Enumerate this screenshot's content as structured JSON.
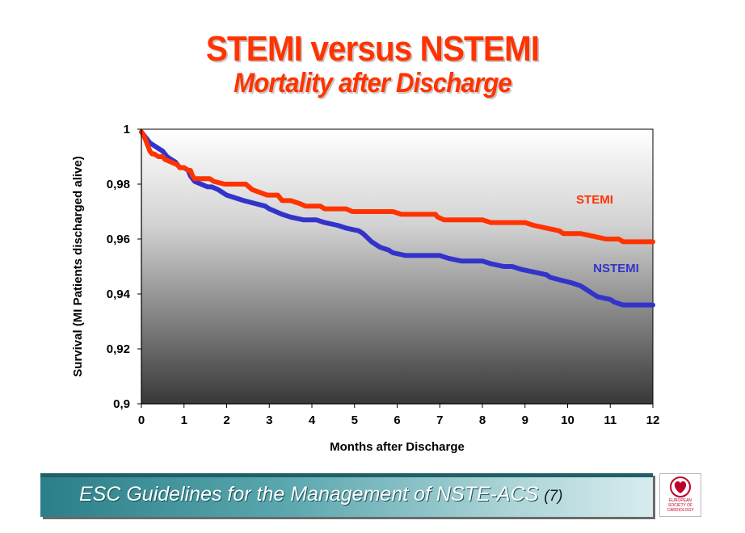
{
  "header": {
    "title": "STEMI versus NSTEMI",
    "subtitle": "Mortality after Discharge"
  },
  "chart_data": {
    "type": "line",
    "title": "STEMI versus NSTEMI",
    "subtitle": "Mortality after Discharge",
    "xlabel": "Months after Discharge",
    "ylabel": "Survival (MI Patients discharged alive)",
    "xlim": [
      0,
      12
    ],
    "ylim": [
      0.9,
      1.0
    ],
    "xticks": [
      "0",
      "1",
      "2",
      "3",
      "4",
      "5",
      "6",
      "7",
      "8",
      "9",
      "10",
      "11",
      "12"
    ],
    "yticks": [
      {
        "value": 0.9,
        "label": "0,9"
      },
      {
        "value": 0.92,
        "label": "0,92"
      },
      {
        "value": 0.94,
        "label": "0,94"
      },
      {
        "value": 0.96,
        "label": "0,96"
      },
      {
        "value": 0.98,
        "label": "0,98"
      },
      {
        "value": 1.0,
        "label": "1"
      }
    ],
    "series": [
      {
        "name": "STEMI",
        "color": "#ff3300",
        "label_at": [
          10.2,
          0.973
        ],
        "x": [
          0,
          0.05,
          0.1,
          0.15,
          0.2,
          0.25,
          0.3,
          0.4,
          0.5,
          0.55,
          0.7,
          0.85,
          0.9,
          1.0,
          1.1,
          1.15,
          1.2,
          1.25,
          1.6,
          1.7,
          1.95,
          2.1,
          2.45,
          2.6,
          2.95,
          3.2,
          3.3,
          3.5,
          3.7,
          3.85,
          4.2,
          4.3,
          4.8,
          4.95,
          5.4,
          5.9,
          6.1,
          6.9,
          6.95,
          7.1,
          7.5,
          8.0,
          8.2,
          8.3,
          8.6,
          9.0,
          9.2,
          9.5,
          9.8,
          9.9,
          10.3,
          10.6,
          10.9,
          11.1,
          11.2,
          11.3,
          11.4,
          11.6,
          12.0
        ],
        "y": [
          0.999,
          0.998,
          0.996,
          0.994,
          0.992,
          0.991,
          0.991,
          0.99,
          0.99,
          0.989,
          0.988,
          0.987,
          0.986,
          0.986,
          0.985,
          0.985,
          0.983,
          0.982,
          0.982,
          0.981,
          0.98,
          0.98,
          0.98,
          0.978,
          0.976,
          0.976,
          0.974,
          0.974,
          0.973,
          0.972,
          0.972,
          0.971,
          0.971,
          0.97,
          0.97,
          0.97,
          0.969,
          0.969,
          0.968,
          0.967,
          0.967,
          0.967,
          0.966,
          0.966,
          0.966,
          0.966,
          0.965,
          0.964,
          0.963,
          0.962,
          0.962,
          0.961,
          0.96,
          0.96,
          0.96,
          0.959,
          0.959,
          0.959,
          0.959
        ]
      },
      {
        "name": "NSTEMI",
        "color": "#3333cc",
        "label_at": [
          10.6,
          0.948
        ],
        "x": [
          0,
          0.1,
          0.2,
          0.3,
          0.4,
          0.5,
          0.6,
          0.7,
          0.8,
          0.9,
          1.0,
          1.1,
          1.15,
          1.25,
          1.4,
          1.55,
          1.65,
          1.8,
          1.9,
          2.0,
          2.2,
          2.4,
          2.9,
          3.0,
          3.3,
          3.5,
          3.8,
          4.1,
          4.3,
          4.6,
          4.8,
          5.1,
          5.2,
          5.4,
          5.6,
          5.8,
          5.9,
          6.2,
          7.0,
          7.2,
          7.5,
          8.0,
          8.2,
          8.5,
          8.7,
          8.9,
          9.2,
          9.5,
          9.6,
          10.1,
          10.3,
          10.5,
          10.6,
          10.7,
          11.0,
          11.1,
          11.3,
          11.5,
          12.0
        ],
        "y": [
          0.999,
          0.997,
          0.995,
          0.994,
          0.993,
          0.992,
          0.99,
          0.989,
          0.988,
          0.986,
          0.986,
          0.985,
          0.983,
          0.981,
          0.98,
          0.979,
          0.979,
          0.978,
          0.977,
          0.976,
          0.975,
          0.974,
          0.972,
          0.971,
          0.969,
          0.968,
          0.967,
          0.967,
          0.966,
          0.965,
          0.964,
          0.963,
          0.962,
          0.959,
          0.957,
          0.956,
          0.955,
          0.954,
          0.954,
          0.953,
          0.952,
          0.952,
          0.951,
          0.95,
          0.95,
          0.949,
          0.948,
          0.947,
          0.946,
          0.944,
          0.943,
          0.941,
          0.94,
          0.939,
          0.938,
          0.937,
          0.936,
          0.936,
          0.936
        ]
      }
    ]
  },
  "footer": {
    "text": "ESC Guidelines for the Management of NSTE-ACS",
    "number": "(7)",
    "logo_text": "EUROPEAN SOCIETY OF CARDIOLOGY"
  },
  "colors": {
    "title": "#ff3300",
    "stemi": "#ff3300",
    "nstemi": "#3333cc",
    "footer_bar": "#2b7f88"
  }
}
